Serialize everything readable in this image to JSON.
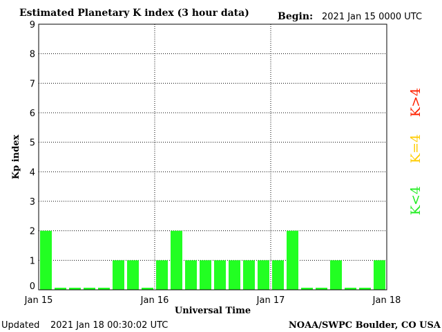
{
  "header": {
    "title": "Estimated Planetary K index (3 hour data)",
    "begin_label": "Begin:",
    "begin_value": "2021 Jan 15 0000 UTC"
  },
  "footer": {
    "updated_label": "Updated",
    "updated_value": "2021 Jan 18 00:30:02 UTC",
    "source": "NOAA/SWPC Boulder, CO USA"
  },
  "legend": {
    "items": [
      {
        "label": "K<4",
        "color": "#22ee22"
      },
      {
        "label": "K=4",
        "color": "#ffcc00"
      },
      {
        "label": "K>4",
        "color": "#ff2200"
      }
    ]
  },
  "chart_data": {
    "type": "bar",
    "title": "Estimated Planetary K index (3 hour data)",
    "xlabel": "Universal Time",
    "ylabel": "Kp index",
    "ylim": [
      0,
      9
    ],
    "y_ticks": [
      "0",
      "1",
      "2",
      "3",
      "4",
      "5",
      "6",
      "7",
      "8",
      "9"
    ],
    "x_ticks": [
      "Jan 15",
      "Jan 16",
      "Jan 17",
      "Jan 18"
    ],
    "bar_interval_hours": 3,
    "grid": true,
    "bar_color": "#22ff22",
    "values": [
      2,
      0,
      0,
      0,
      0,
      1,
      1,
      0,
      1,
      2,
      1,
      1,
      1,
      1,
      1,
      1,
      1,
      2,
      0,
      0,
      1,
      0,
      0,
      1
    ]
  }
}
